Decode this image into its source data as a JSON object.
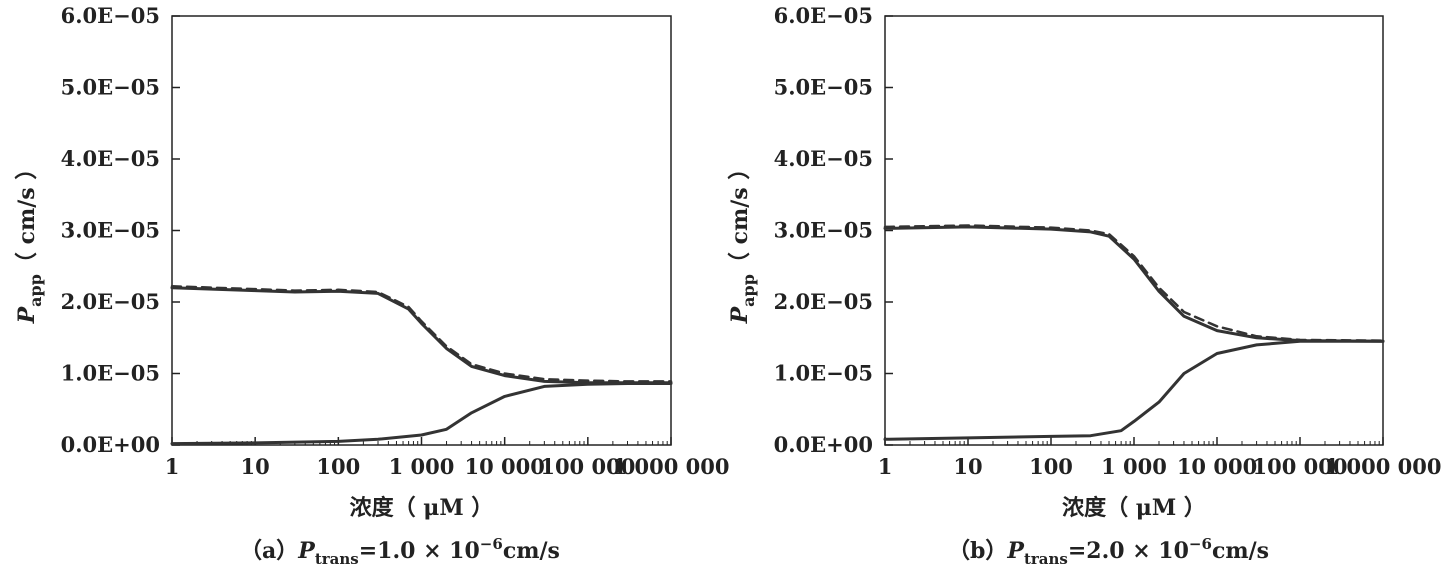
{
  "chart_data": [
    {
      "type": "line",
      "panel_label": "（a）",
      "caption_symbol": "P",
      "caption_subscript": "trans",
      "caption_value": "=1.0 × 10",
      "caption_exponent": "−6",
      "caption_unit": "cm/s",
      "xlabel": "浓度（ μM ）",
      "ylabel_symbol": "P",
      "ylabel_subscript": "app",
      "ylabel_unit": "（ cm/s ）",
      "xscale": "log",
      "xlim": [
        1,
        1000000
      ],
      "ylim": [
        0,
        6e-05
      ],
      "x_ticks": [
        1,
        10,
        100,
        1000,
        10000,
        100000,
        1000000
      ],
      "x_tick_labels": [
        "1",
        "10",
        "100",
        "1 000",
        "10 000",
        "100 000",
        "1 000 000"
      ],
      "y_ticks": [
        0,
        1e-05,
        2e-05,
        3e-05,
        4e-05,
        5e-05,
        6e-05
      ],
      "y_tick_labels": [
        "0.0E+00",
        "1.0E−05",
        "2.0E−05",
        "3.0E−05",
        "4.0E−05",
        "5.0E−05",
        "6.0E−05"
      ],
      "series": [
        {
          "style": "solid",
          "color": "#333333",
          "x": [
            1,
            10,
            30,
            100,
            300,
            700,
            1000,
            2000,
            4000,
            10000,
            30000,
            100000,
            300000,
            1000000
          ],
          "y": [
            2.2e-05,
            2.16e-05,
            2.14e-05,
            2.15e-05,
            2.12e-05,
            1.9e-05,
            1.7e-05,
            1.35e-05,
            1.1e-05,
            9.7e-06,
            8.9e-06,
            8.7e-06,
            8.7e-06,
            8.7e-06
          ]
        },
        {
          "style": "dashed",
          "color": "#333333",
          "x": [
            1,
            10,
            30,
            100,
            300,
            700,
            1000,
            2000,
            4000,
            10000,
            30000,
            100000,
            300000,
            1000000
          ],
          "y": [
            2.22e-05,
            2.18e-05,
            2.16e-05,
            2.17e-05,
            2.14e-05,
            1.93e-05,
            1.73e-05,
            1.38e-05,
            1.13e-05,
            1e-05,
            9.2e-06,
            9e-06,
            8.9e-06,
            8.9e-06
          ]
        },
        {
          "style": "solid",
          "color": "#333333",
          "x": [
            1,
            10,
            100,
            300,
            1000,
            2000,
            4000,
            10000,
            30000,
            100000,
            300000,
            1000000
          ],
          "y": [
            2e-07,
            3e-07,
            5e-07,
            8e-07,
            1.4e-06,
            2.2e-06,
            4.5e-06,
            6.8e-06,
            8.2e-06,
            8.5e-06,
            8.6e-06,
            8.6e-06
          ]
        }
      ]
    },
    {
      "type": "line",
      "panel_label": "（b）",
      "caption_symbol": "P",
      "caption_subscript": "trans",
      "caption_value": "=2.0 × 10",
      "caption_exponent": "−6",
      "caption_unit": "cm/s",
      "xlabel": "浓度（ μM ）",
      "ylabel_symbol": "P",
      "ylabel_subscript": "app",
      "ylabel_unit": "（ cm/s ）",
      "xscale": "log",
      "xlim": [
        1,
        1000000
      ],
      "ylim": [
        0,
        6e-05
      ],
      "x_ticks": [
        1,
        10,
        100,
        1000,
        10000,
        100000,
        1000000
      ],
      "x_tick_labels": [
        "1",
        "10",
        "100",
        "1 000",
        "10 000",
        "100 000",
        "1 000 000"
      ],
      "y_ticks": [
        0,
        1e-05,
        2e-05,
        3e-05,
        4e-05,
        5e-05,
        6e-05
      ],
      "y_tick_labels": [
        "0.0E+00",
        "1.0E−05",
        "2.0E−05",
        "3.0E−05",
        "4.0E−05",
        "5.0E−05",
        "6.0E−05"
      ],
      "series": [
        {
          "style": "solid",
          "color": "#333333",
          "x": [
            1,
            10,
            100,
            300,
            500,
            1000,
            2000,
            4000,
            10000,
            30000,
            100000,
            1000000
          ],
          "y": [
            3.03e-05,
            3.05e-05,
            3.02e-05,
            2.98e-05,
            2.92e-05,
            2.6e-05,
            2.15e-05,
            1.8e-05,
            1.6e-05,
            1.5e-05,
            1.46e-05,
            1.45e-05
          ]
        },
        {
          "style": "dashed",
          "color": "#333333",
          "x": [
            1,
            10,
            100,
            300,
            500,
            1000,
            2000,
            4000,
            10000,
            30000,
            100000,
            1000000
          ],
          "y": [
            3.05e-05,
            3.07e-05,
            3.04e-05,
            3e-05,
            2.95e-05,
            2.64e-05,
            2.2e-05,
            1.86e-05,
            1.66e-05,
            1.52e-05,
            1.47e-05,
            1.46e-05
          ]
        },
        {
          "style": "solid",
          "color": "#333333",
          "x": [
            1,
            10,
            100,
            300,
            700,
            1000,
            2000,
            4000,
            10000,
            30000,
            100000,
            1000000
          ],
          "y": [
            8e-07,
            1e-06,
            1.2e-06,
            1.3e-06,
            2e-06,
            3.3e-06,
            6e-06,
            1e-05,
            1.28e-05,
            1.4e-05,
            1.45e-05,
            1.45e-05
          ]
        }
      ]
    }
  ]
}
